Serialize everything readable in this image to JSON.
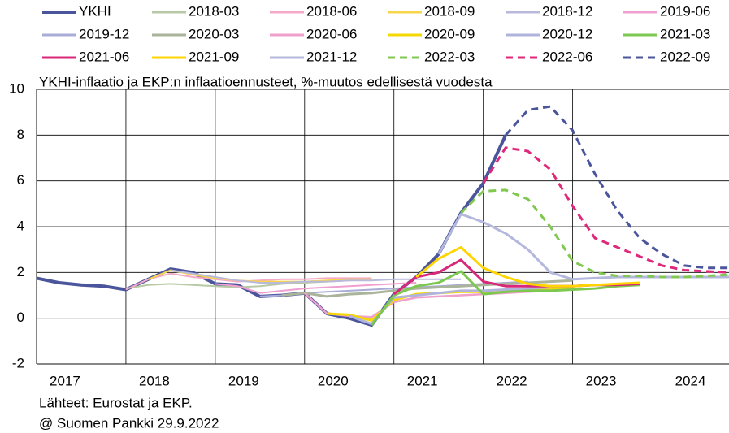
{
  "chart_data": {
    "type": "line",
    "title": "YKHI-inflaatio ja EKP:n inflaatioennusteet, %-muutos edellisestä vuodesta",
    "source": "Lähteet: Eurostat ja EKP.",
    "note": "@ Suomen Pankki 29.9.2022",
    "x": [
      2017,
      2017.25,
      2017.5,
      2017.75,
      2018,
      2018.25,
      2018.5,
      2018.75,
      2019,
      2019.25,
      2019.5,
      2019.75,
      2020,
      2020.25,
      2020.5,
      2020.75,
      2021,
      2021.25,
      2021.5,
      2021.75,
      2022,
      2022.25,
      2022.5,
      2022.75,
      2023,
      2023.25,
      2023.5,
      2023.75,
      2024,
      2024.25,
      2024.5,
      2024.75
    ],
    "xlim": [
      2017,
      2024.75
    ],
    "xticks": [
      2017,
      2018,
      2019,
      2020,
      2021,
      2022,
      2023,
      2024
    ],
    "ylim": [
      -2,
      10
    ],
    "yticks": [
      -2,
      0,
      2,
      4,
      6,
      8,
      10
    ],
    "grid": true,
    "series": [
      {
        "name": "YKHI",
        "color": "#4b559c",
        "width": 4,
        "values": [
          1.75,
          1.55,
          1.45,
          1.4,
          1.25,
          1.7,
          2.15,
          2.0,
          1.5,
          1.45,
          0.95,
          1.0,
          1.1,
          0.2,
          0.0,
          -0.3,
          1.05,
          1.8,
          2.8,
          4.6,
          5.9,
          8.0,
          null,
          null,
          null,
          null,
          null,
          null,
          null,
          null,
          null,
          null
        ]
      },
      {
        "name": "2018-03",
        "color": "#b7c9a5",
        "width": 2,
        "values": [
          null,
          null,
          null,
          null,
          1.3,
          1.45,
          1.5,
          1.45,
          1.4,
          1.35,
          1.4,
          1.5,
          1.55,
          1.6,
          1.65,
          1.7,
          null,
          null,
          null,
          null,
          null,
          null,
          null,
          null,
          null,
          null,
          null,
          null,
          null,
          null,
          null,
          null
        ]
      },
      {
        "name": "2018-06",
        "color": "#f5a9c8",
        "width": 2,
        "values": [
          null,
          null,
          null,
          null,
          1.25,
          1.7,
          1.95,
          1.8,
          1.7,
          1.6,
          1.65,
          1.7,
          1.7,
          1.75,
          1.75,
          1.75,
          null,
          null,
          null,
          null,
          null,
          null,
          null,
          null,
          null,
          null,
          null,
          null,
          null,
          null,
          null,
          null
        ]
      },
      {
        "name": "2018-09",
        "color": "#f7d64a",
        "width": 2,
        "values": [
          null,
          null,
          null,
          null,
          null,
          1.7,
          2.1,
          1.9,
          1.75,
          1.65,
          1.6,
          1.6,
          1.6,
          1.65,
          1.7,
          1.7,
          null,
          null,
          null,
          null,
          null,
          null,
          null,
          null,
          null,
          null,
          null,
          null,
          null,
          null,
          null,
          null
        ]
      },
      {
        "name": "2018-12",
        "color": "#b9b9dc",
        "width": 2,
        "values": [
          null,
          null,
          null,
          null,
          null,
          null,
          2.1,
          1.95,
          1.8,
          1.65,
          1.55,
          1.55,
          1.6,
          1.6,
          1.65,
          1.65,
          1.7,
          1.7,
          1.7,
          1.7,
          null,
          null,
          null,
          null,
          null,
          null,
          null,
          null,
          null,
          null,
          null,
          null
        ]
      },
      {
        "name": "2019-06",
        "color": "#f0a0d0",
        "width": 2,
        "values": [
          null,
          null,
          null,
          null,
          null,
          null,
          null,
          null,
          1.5,
          1.4,
          1.1,
          1.2,
          1.3,
          1.35,
          1.4,
          1.45,
          1.5,
          1.55,
          null,
          null,
          null,
          null,
          null,
          null,
          null,
          null,
          null,
          null,
          null,
          null,
          null,
          null
        ]
      },
      {
        "name": "2019-12",
        "color": "#a8acd6",
        "width": 2,
        "values": [
          null,
          null,
          null,
          null,
          null,
          null,
          null,
          null,
          null,
          null,
          0.95,
          1.0,
          1.1,
          1.15,
          1.2,
          1.25,
          1.3,
          1.35,
          1.4,
          1.45,
          1.5,
          1.55,
          1.6,
          null,
          null,
          null,
          null,
          null,
          null,
          null,
          null,
          null
        ]
      },
      {
        "name": "2020-03",
        "color": "#aab49a",
        "width": 3,
        "values": [
          null,
          null,
          null,
          null,
          null,
          null,
          null,
          null,
          null,
          null,
          null,
          1.0,
          1.1,
          0.95,
          1.05,
          1.1,
          1.2,
          1.3,
          1.35,
          1.4,
          1.45,
          1.5,
          1.55,
          1.6,
          1.65,
          null,
          null,
          null,
          null,
          null,
          null,
          null
        ]
      },
      {
        "name": "2020-06",
        "color": "#f0a0cc",
        "width": 2.5,
        "values": [
          null,
          null,
          null,
          null,
          null,
          null,
          null,
          null,
          null,
          null,
          null,
          null,
          1.1,
          0.2,
          0.1,
          0.05,
          0.7,
          0.9,
          0.95,
          1.0,
          1.05,
          1.1,
          1.15,
          1.2,
          1.25,
          null,
          null,
          null,
          null,
          null,
          null,
          null
        ]
      },
      {
        "name": "2020-09",
        "color": "#f5d800",
        "width": 3,
        "values": [
          null,
          null,
          null,
          null,
          null,
          null,
          null,
          null,
          null,
          null,
          null,
          null,
          null,
          0.2,
          0.15,
          -0.1,
          0.8,
          1.05,
          1.1,
          1.15,
          1.15,
          1.2,
          1.25,
          1.3,
          1.35,
          null,
          null,
          null,
          null,
          null,
          null,
          null
        ]
      },
      {
        "name": "2020-12",
        "color": "#b0b4dc",
        "width": 3,
        "values": [
          null,
          null,
          null,
          null,
          null,
          null,
          null,
          null,
          null,
          null,
          null,
          null,
          null,
          null,
          0.1,
          -0.25,
          0.9,
          1.0,
          1.1,
          1.2,
          1.2,
          1.25,
          1.3,
          1.35,
          1.4,
          1.45,
          null,
          null,
          null,
          null,
          null,
          null
        ]
      },
      {
        "name": "2021-03",
        "color": "#7cc850",
        "width": 3,
        "values": [
          null,
          null,
          null,
          null,
          null,
          null,
          null,
          null,
          null,
          null,
          null,
          null,
          null,
          null,
          null,
          -0.3,
          1.0,
          1.4,
          1.55,
          2.05,
          1.05,
          1.15,
          1.2,
          1.2,
          1.25,
          1.3,
          1.4,
          1.45,
          null,
          null,
          null,
          null
        ]
      },
      {
        "name": "2021-06",
        "color": "#d8287a",
        "width": 3,
        "values": [
          null,
          null,
          null,
          null,
          null,
          null,
          null,
          null,
          null,
          null,
          null,
          null,
          null,
          null,
          null,
          null,
          1.05,
          1.8,
          2.0,
          2.55,
          1.6,
          1.4,
          1.4,
          1.4,
          1.4,
          1.45,
          1.45,
          1.5,
          null,
          null,
          null,
          null
        ]
      },
      {
        "name": "2021-09",
        "color": "#ffd400",
        "width": 3,
        "values": [
          null,
          null,
          null,
          null,
          null,
          null,
          null,
          null,
          null,
          null,
          null,
          null,
          null,
          null,
          null,
          null,
          null,
          1.8,
          2.6,
          3.1,
          2.2,
          1.8,
          1.5,
          1.4,
          1.4,
          1.45,
          1.5,
          1.55,
          null,
          null,
          null,
          null
        ]
      },
      {
        "name": "2021-12",
        "color": "#b4b8dc",
        "width": 3,
        "values": [
          null,
          null,
          null,
          null,
          null,
          null,
          null,
          null,
          null,
          null,
          null,
          null,
          null,
          null,
          null,
          null,
          null,
          null,
          2.8,
          4.55,
          4.2,
          3.7,
          3.0,
          2.0,
          1.7,
          1.75,
          1.8,
          1.8,
          1.8,
          1.8,
          1.8,
          1.8
        ]
      },
      {
        "name": "2022-03",
        "color": "#80c850",
        "width": 3,
        "dash": true,
        "values": [
          null,
          null,
          null,
          null,
          null,
          null,
          null,
          null,
          null,
          null,
          null,
          null,
          null,
          null,
          null,
          null,
          null,
          null,
          null,
          4.6,
          5.55,
          5.6,
          5.2,
          4.0,
          2.5,
          2.0,
          1.85,
          1.85,
          1.8,
          1.8,
          1.85,
          1.9
        ]
      },
      {
        "name": "2022-06",
        "color": "#e0287a",
        "width": 3,
        "dash": true,
        "values": [
          null,
          null,
          null,
          null,
          null,
          null,
          null,
          null,
          null,
          null,
          null,
          null,
          null,
          null,
          null,
          null,
          null,
          null,
          null,
          null,
          5.9,
          7.45,
          7.3,
          6.5,
          4.9,
          3.5,
          3.1,
          2.7,
          2.3,
          2.1,
          2.05,
          2.0
        ]
      },
      {
        "name": "2022-09",
        "color": "#4b559c",
        "width": 3,
        "dash": true,
        "values": [
          null,
          null,
          null,
          null,
          null,
          null,
          null,
          null,
          null,
          null,
          null,
          null,
          null,
          null,
          null,
          null,
          null,
          null,
          null,
          null,
          null,
          8.0,
          9.1,
          9.25,
          8.2,
          6.3,
          4.7,
          3.5,
          2.8,
          2.3,
          2.2,
          2.2
        ]
      }
    ]
  }
}
